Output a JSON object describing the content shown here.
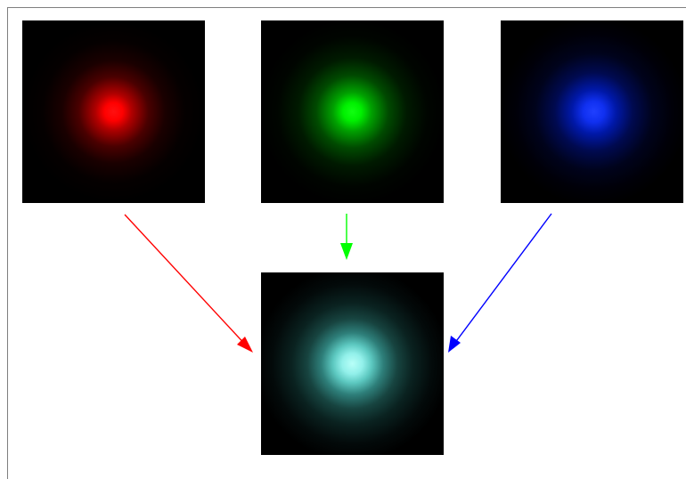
{
  "diagram": {
    "channels": [
      {
        "id": "red",
        "color": "#ff0000",
        "glow": "rgb(255,0,0)"
      },
      {
        "id": "green",
        "color": "#00ff00",
        "glow": "rgb(0,255,0)"
      },
      {
        "id": "blue",
        "color": "#0000ff",
        "glow": "rgb(20,40,255)"
      }
    ],
    "composite": {
      "core": "#9ff5f0",
      "halo": "rgba(60,160,150,0.55)"
    },
    "arrow_colors": {
      "red": "#ff0000",
      "green": "#00ff00",
      "blue": "#0000ff"
    }
  }
}
